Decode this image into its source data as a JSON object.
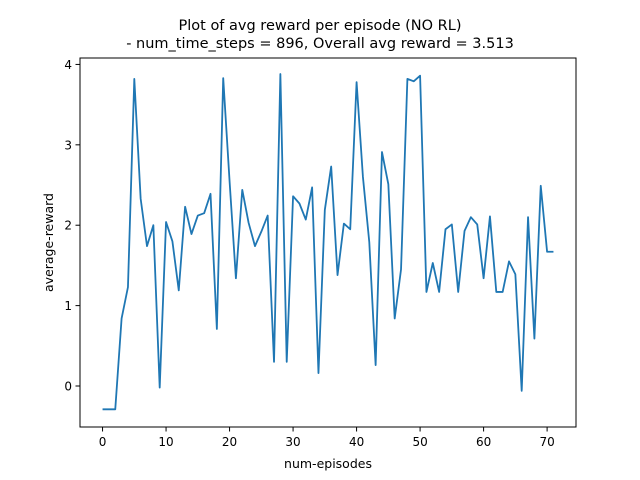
{
  "chart_data": {
    "type": "line",
    "title": "Plot of avg reward per episode (NO RL)",
    "subtitle": " - num_time_steps = 896, Overall avg reward = 3.513",
    "xlabel": "num-episodes",
    "ylabel": "average-reward",
    "xlim": [
      -3.55,
      74.55
    ],
    "ylim": [
      -0.51,
      4.08
    ],
    "xticks": [
      0,
      10,
      20,
      30,
      40,
      50,
      60,
      70
    ],
    "yticks": [
      0,
      1,
      2,
      3,
      4
    ],
    "grid": false,
    "line_color": "#1f77b4",
    "series": [
      {
        "x": [
          0,
          1,
          2,
          3,
          4,
          5,
          6,
          7,
          8,
          9,
          10,
          11,
          12,
          13,
          14,
          15,
          16,
          17,
          18,
          19,
          20,
          21,
          22,
          23,
          24,
          25,
          26,
          27,
          28,
          29,
          30,
          31,
          32,
          33,
          34,
          35,
          36,
          37,
          38,
          39,
          40,
          41,
          42,
          43,
          44,
          45,
          46,
          47,
          48,
          49,
          50,
          51,
          52,
          53,
          54,
          55,
          56,
          57,
          58,
          59,
          60,
          61,
          62,
          63,
          64,
          65,
          66,
          67,
          68,
          69,
          70,
          71
        ],
        "values": [
          -0.29,
          -0.29,
          -0.29,
          0.84,
          1.23,
          3.82,
          2.33,
          1.74,
          2.0,
          -0.02,
          2.04,
          1.8,
          1.19,
          2.23,
          1.89,
          2.12,
          2.15,
          2.39,
          0.71,
          3.83,
          2.55,
          1.34,
          2.44,
          2.03,
          1.74,
          1.92,
          2.12,
          0.3,
          3.88,
          0.3,
          2.36,
          2.27,
          2.07,
          2.47,
          0.16,
          2.19,
          2.73,
          1.38,
          2.02,
          1.95,
          3.78,
          2.6,
          1.79,
          0.26,
          2.91,
          2.51,
          0.84,
          1.45,
          3.82,
          3.79,
          3.86,
          1.17,
          1.53,
          1.17,
          1.95,
          2.01,
          1.17,
          1.93,
          2.1,
          2.01,
          1.34,
          2.11,
          1.17,
          1.17,
          1.55,
          1.39,
          -0.06,
          2.1,
          0.59,
          2.49,
          1.67,
          1.67
        ]
      }
    ]
  }
}
